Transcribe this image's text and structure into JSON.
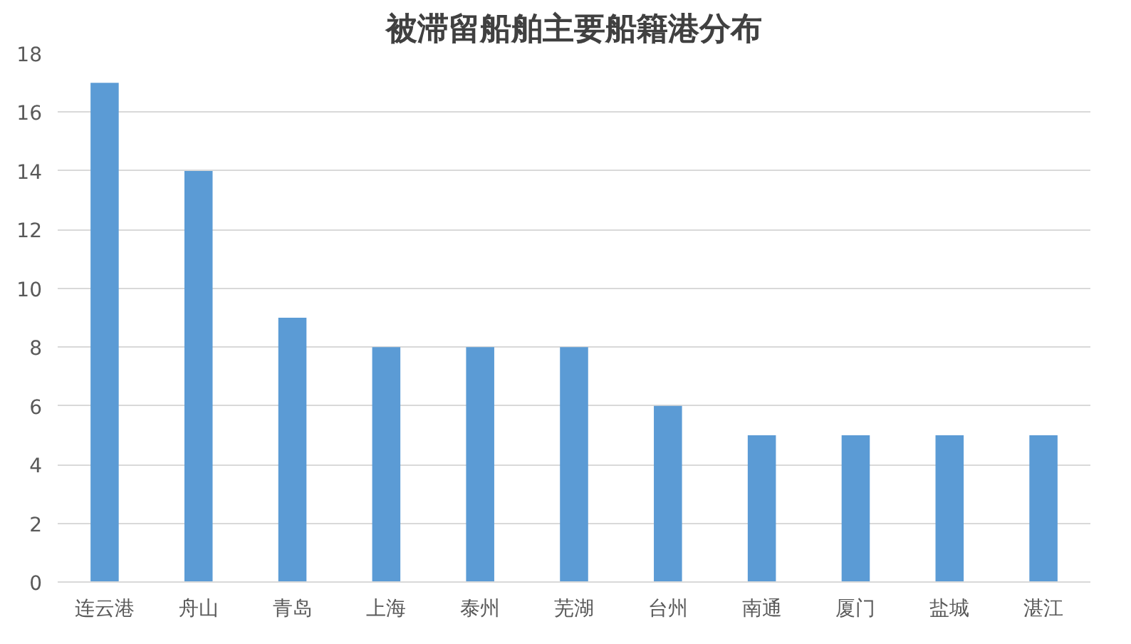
{
  "chart_data": {
    "type": "bar",
    "title": "被滞留船舶主要船籍港分布",
    "categories": [
      "连云港",
      "舟山",
      "青岛",
      "上海",
      "泰州",
      "芜湖",
      "台州",
      "南通",
      "厦门",
      "盐城",
      "湛江"
    ],
    "values": [
      17,
      14,
      9,
      8,
      8,
      8,
      6,
      5,
      5,
      5,
      5
    ],
    "color": "#5b9bd5",
    "ylim": [
      0,
      18
    ],
    "yticks": [
      0,
      2,
      4,
      6,
      8,
      10,
      12,
      14,
      16,
      18
    ],
    "grid": "y"
  }
}
